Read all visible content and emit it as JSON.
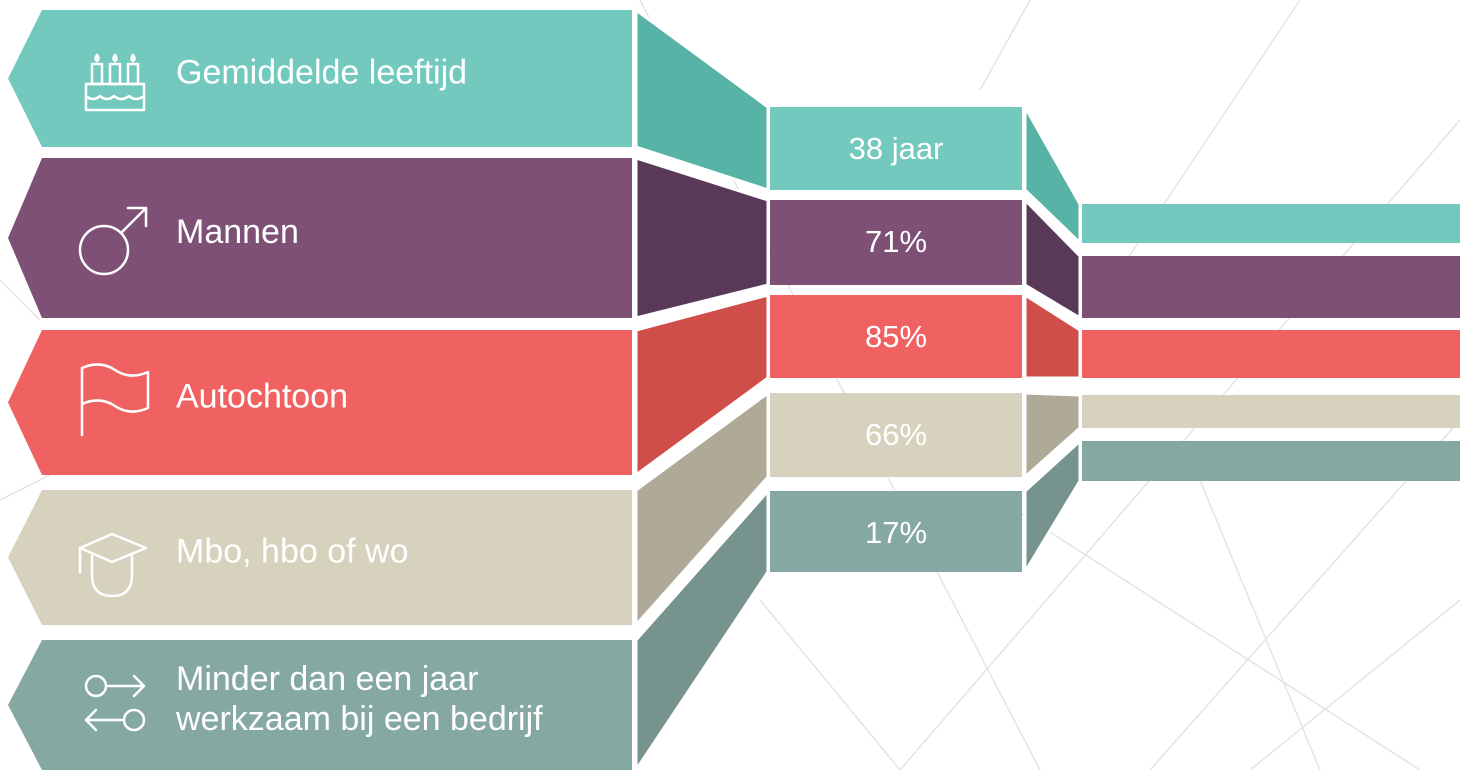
{
  "rows": [
    {
      "label": [
        "Gemiddelde leeftijd"
      ],
      "value": "38 jaar"
    },
    {
      "label": [
        "Mannen"
      ],
      "value": "71%"
    },
    {
      "label": [
        "Autochtoon"
      ],
      "value": "85%"
    },
    {
      "label": [
        "Mbo, hbo of wo"
      ],
      "value": "66%"
    },
    {
      "label": [
        "Minder dan een jaar",
        "werkzaam bij een bedrijf"
      ],
      "value": "17%"
    }
  ]
}
